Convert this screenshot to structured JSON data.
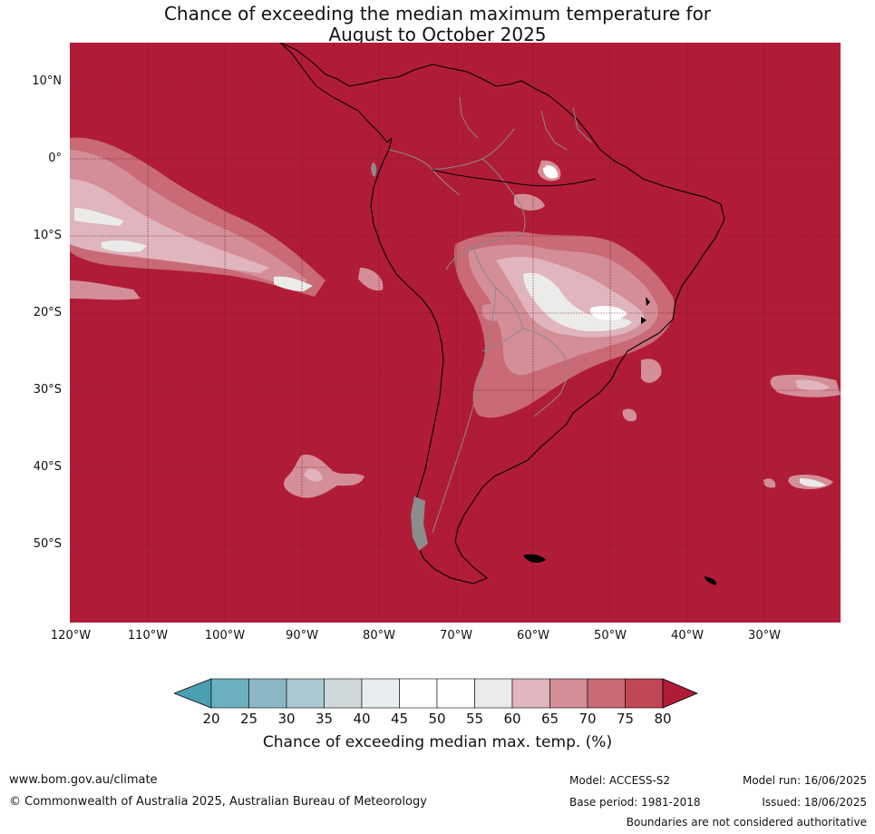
{
  "title": {
    "line1": "Chance of exceeding the median maximum temperature for",
    "line2": "August to October 2025"
  },
  "map": {
    "lat_labels": [
      "10°N",
      "0°",
      "10°S",
      "20°S",
      "30°S",
      "40°S",
      "50°S"
    ],
    "lon_labels": [
      "120°W",
      "110°W",
      "100°W",
      "90°W",
      "80°W",
      "70°W",
      "60°W",
      "50°W",
      "40°W",
      "30°W"
    ],
    "dominant_color": "#b01c37",
    "land_missing_color": "#8c8c8c"
  },
  "colorbar": {
    "ticks": [
      "20",
      "25",
      "30",
      "35",
      "40",
      "45",
      "50",
      "55",
      "60",
      "65",
      "70",
      "75",
      "80"
    ],
    "colors": [
      "#4aa0b0",
      "#6cb0c0",
      "#8cb8c6",
      "#a9c8cd",
      "#cfd9da",
      "#e8eef0",
      "#ffffff",
      "#ffffff",
      "#ebebea",
      "#e0b5bd",
      "#d48e97",
      "#c96a76",
      "#c14656",
      "#b01c37"
    ],
    "label": "Chance of exceeding median max. temp. (%)"
  },
  "footer": {
    "website": "www.bom.gov.au/climate",
    "copyright": "© Commonwealth of Australia 2025, Australian Bureau of Meteorology",
    "model": "Model: ACCESS-S2",
    "base_period": "Base period: 1981-2018",
    "model_run": "Model run: 16/06/2025",
    "issued": "Issued: 18/06/2025",
    "disclaimer": "Boundaries are not considered authoritative"
  }
}
